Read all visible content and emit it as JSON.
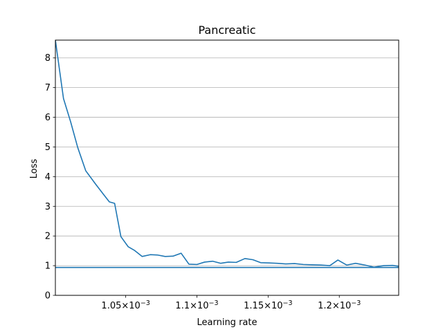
{
  "chart_data": {
    "type": "line",
    "title": "Pancreatic",
    "xlabel": "Learning rate",
    "ylabel": "Loss",
    "xlim": [
      0.0010006,
      0.0012417
    ],
    "ylim": [
      0,
      8.6
    ],
    "grid": "y-major",
    "line_color": "#1f77b4",
    "x_ticks": [
      {
        "value": 0.00105,
        "base": "1.05×10",
        "exp": "−3"
      },
      {
        "value": 0.0011,
        "base": "1.1×10",
        "exp": "−3"
      },
      {
        "value": 0.00115,
        "base": "1.15×10",
        "exp": "−3"
      },
      {
        "value": 0.0012,
        "base": "1.2×10",
        "exp": "−3"
      }
    ],
    "y_ticks": [
      "0",
      "1",
      "2",
      "3",
      "4",
      "5",
      "6",
      "7",
      "8"
    ],
    "reference_line": {
      "y": 0.94
    },
    "series": [
      {
        "x": [
          0.0010006,
          0.0010063,
          0.0010113,
          0.0010163,
          0.0010219,
          0.0010285,
          0.0010341,
          0.0010385,
          0.0010422,
          0.0010466,
          0.0010517,
          0.001056,
          0.0010615,
          0.0010672,
          0.0010722,
          0.0010777,
          0.0010832,
          0.0010889,
          0.0010944,
          0.0011,
          0.0011054,
          0.001111,
          0.0011166,
          0.0011221,
          0.0011276,
          0.0011337,
          0.0011393,
          0.0011448,
          0.0011509,
          0.0011564,
          0.0011624,
          0.0011686,
          0.0011747,
          0.0011808,
          0.0011871,
          0.0011933,
          0.001199,
          0.0012052,
          0.0012114,
          0.0012181,
          0.0012243,
          0.0012311,
          0.0012374,
          0.0012417
        ],
        "y": [
          8.6,
          6.63,
          5.85,
          4.98,
          4.2,
          3.77,
          3.42,
          3.15,
          3.1,
          1.98,
          1.64,
          1.52,
          1.31,
          1.37,
          1.36,
          1.31,
          1.32,
          1.42,
          1.05,
          1.04,
          1.12,
          1.15,
          1.08,
          1.12,
          1.11,
          1.24,
          1.2,
          1.1,
          1.09,
          1.08,
          1.06,
          1.07,
          1.04,
          1.03,
          1.02,
          1.0,
          1.19,
          1.02,
          1.08,
          1.02,
          0.95,
          1.0,
          1.01,
          0.98
        ]
      }
    ]
  }
}
